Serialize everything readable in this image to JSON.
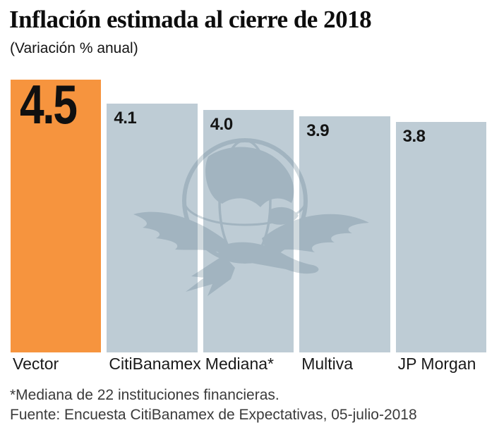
{
  "header": {
    "title": "Inflación estimada al cierre de 2018",
    "subtitle": "(Variación % anual)"
  },
  "chart_data": {
    "type": "bar",
    "categories": [
      "Vector",
      "CitiBanamex",
      "Mediana*",
      "Multiva",
      "JP Morgan"
    ],
    "values": [
      4.5,
      4.1,
      4.0,
      3.9,
      3.8
    ],
    "value_labels": [
      "4.5",
      "4.1",
      "4.0",
      "3.9",
      "3.8"
    ],
    "title": "Inflación estimada al cierre de 2018",
    "subtitle": "(Variación % anual)",
    "xlabel": "",
    "ylabel": "",
    "ylim": [
      0,
      4.5
    ],
    "grid": false,
    "legend": false,
    "highlight_index": 0,
    "colors": {
      "highlight_bar": "#F6943E",
      "default_bar": "#BECCD5",
      "watermark": "#5B7A8C",
      "value_text": "#121212",
      "category_text": "#1A1A1A"
    }
  },
  "icons": {
    "watermark": "eagle-globe-logo"
  },
  "footnotes": {
    "line1": "*Mediana de 22 instituciones financieras.",
    "line2": "Fuente: Encuesta CitiBanamex de Expectativas, 05-julio-2018"
  }
}
